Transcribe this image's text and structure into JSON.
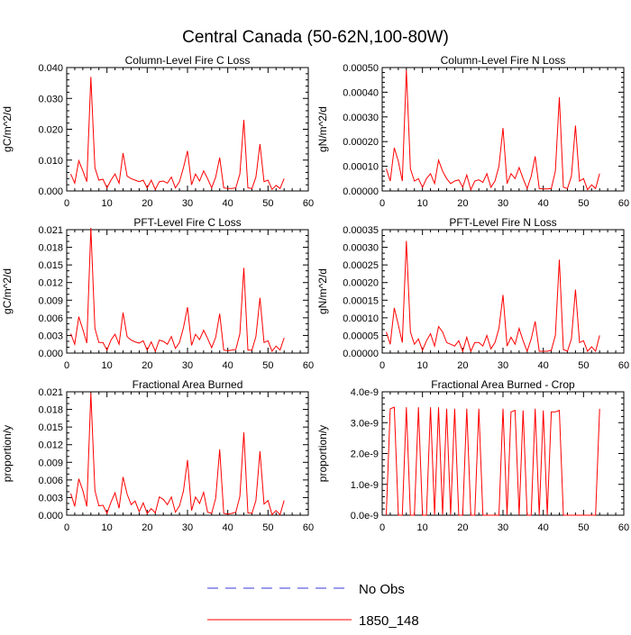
{
  "page_title": "Central Canada (50-62N,100-80W)",
  "colors": {
    "series": "#ff0000",
    "obs": "#3a3ad8",
    "axis": "#000000"
  },
  "legend": [
    {
      "label": "No Obs",
      "style": "dashed",
      "color": "#3a3ad8"
    },
    {
      "label": "1850_148",
      "style": "solid",
      "color": "#ff0000"
    }
  ],
  "chart_data": [
    {
      "type": "line",
      "title": "Column-Level Fire C Loss",
      "ylabel": "gC/m^2/d",
      "xlim": [
        0,
        60
      ],
      "ylim": [
        0,
        0.04
      ],
      "xticks": [
        0,
        10,
        20,
        30,
        40,
        50,
        60
      ],
      "xtick_labels": [
        "0",
        "10",
        "20",
        "30",
        "40",
        "50",
        "60"
      ],
      "yticks": [
        0,
        0.01,
        0.02,
        0.03,
        0.04
      ],
      "ytick_labels": [
        "0.000",
        "0.010",
        "0.020",
        "0.030",
        "0.040"
      ],
      "series": [
        {
          "name": "1850_148",
          "x": [
            1,
            2,
            3,
            4,
            5,
            6,
            7,
            8,
            9,
            10,
            11,
            12,
            13,
            14,
            15,
            16,
            17,
            18,
            19,
            20,
            21,
            22,
            23,
            24,
            25,
            26,
            27,
            28,
            29,
            30,
            31,
            32,
            33,
            34,
            35,
            36,
            37,
            38,
            39,
            40,
            41,
            42,
            43,
            44,
            45,
            46,
            47,
            48,
            49,
            50,
            51,
            52,
            53,
            54
          ],
          "values": [
            0.0055,
            0.0025,
            0.0098,
            0.0065,
            0.003,
            0.037,
            0.0075,
            0.0035,
            0.0038,
            0.001,
            0.0035,
            0.0055,
            0.0025,
            0.0123,
            0.0048,
            0.004,
            0.0035,
            0.003,
            0.0035,
            0.001,
            0.0035,
            0.0005,
            0.003,
            0.0032,
            0.0025,
            0.0045,
            0.001,
            0.003,
            0.0075,
            0.013,
            0.002,
            0.0055,
            0.0032,
            0.0065,
            0.004,
            0.001,
            0.0045,
            0.0108,
            0.001,
            0.0008,
            0.0008,
            0.001,
            0.0055,
            0.023,
            0.001,
            0.0008,
            0.0045,
            0.0152,
            0.003,
            0.0035,
            0.0005,
            0.0018,
            0.0008,
            0.004
          ]
        }
      ]
    },
    {
      "type": "line",
      "title": "Column-Level Fire N Loss",
      "ylabel": "gN/m^2/d",
      "xlim": [
        0,
        60
      ],
      "ylim": [
        0,
        0.0005
      ],
      "xticks": [
        0,
        10,
        20,
        30,
        40,
        50,
        60
      ],
      "xtick_labels": [
        "0",
        "10",
        "20",
        "30",
        "40",
        "50",
        "60"
      ],
      "yticks": [
        0,
        0.0001,
        0.0002,
        0.0003,
        0.0004,
        0.0005
      ],
      "ytick_labels": [
        "0.00000",
        "0.00010",
        "0.00020",
        "0.00030",
        "0.00040",
        "0.00050"
      ],
      "series": [
        {
          "name": "1850_148",
          "x": [
            1,
            2,
            3,
            4,
            5,
            6,
            7,
            8,
            9,
            10,
            11,
            12,
            13,
            14,
            15,
            16,
            17,
            18,
            19,
            20,
            21,
            22,
            23,
            24,
            25,
            26,
            27,
            28,
            29,
            30,
            31,
            32,
            33,
            34,
            35,
            36,
            37,
            38,
            39,
            40,
            41,
            42,
            43,
            44,
            45,
            46,
            47,
            48,
            49,
            50,
            51,
            52,
            53,
            54
          ],
          "values": [
            9e-05,
            4e-05,
            0.000175,
            0.00012,
            4e-05,
            0.00049,
            9e-05,
            4e-05,
            5e-05,
            1.5e-05,
            5e-05,
            7e-05,
            3e-05,
            0.000125,
            8e-05,
            5e-05,
            3e-05,
            4e-05,
            4.5e-05,
            1.5e-05,
            6.5e-05,
            5e-06,
            4e-05,
            4.5e-05,
            3.5e-05,
            7e-05,
            1.5e-05,
            4e-05,
            0.0001,
            0.000255,
            3e-05,
            7e-05,
            5e-05,
            9.5e-05,
            5e-05,
            1e-05,
            6e-05,
            0.00014,
            1e-05,
            8e-06,
            8e-06,
            1e-05,
            8e-05,
            0.00038,
            1.5e-05,
            1e-05,
            6e-05,
            0.000265,
            4e-05,
            5e-05,
            5e-06,
            2.5e-05,
            1e-05,
            7e-05
          ]
        }
      ]
    },
    {
      "type": "line",
      "title": "PFT-Level Fire C Loss",
      "ylabel": "gC/m^2/d",
      "xlim": [
        0,
        60
      ],
      "ylim": [
        0,
        0.021
      ],
      "xticks": [
        0,
        10,
        20,
        30,
        40,
        50,
        60
      ],
      "xtick_labels": [
        "0",
        "10",
        "20",
        "30",
        "40",
        "50",
        "60"
      ],
      "yticks": [
        0,
        0.003,
        0.006,
        0.009,
        0.012,
        0.015,
        0.018,
        0.021
      ],
      "ytick_labels": [
        "0.000",
        "0.003",
        "0.006",
        "0.009",
        "0.012",
        "0.015",
        "0.018",
        "0.021"
      ],
      "series": [
        {
          "name": "1850_148",
          "x": [
            1,
            2,
            3,
            4,
            5,
            6,
            7,
            8,
            9,
            10,
            11,
            12,
            13,
            14,
            15,
            16,
            17,
            18,
            19,
            20,
            21,
            22,
            23,
            24,
            25,
            26,
            27,
            28,
            29,
            30,
            31,
            32,
            33,
            34,
            35,
            36,
            37,
            38,
            39,
            40,
            41,
            42,
            43,
            44,
            45,
            46,
            47,
            48,
            49,
            50,
            51,
            52,
            53,
            54
          ],
          "values": [
            0.0033,
            0.0015,
            0.0062,
            0.004,
            0.0017,
            0.0213,
            0.0042,
            0.0018,
            0.0018,
            0.0005,
            0.0022,
            0.0032,
            0.0015,
            0.0069,
            0.0028,
            0.0022,
            0.0019,
            0.0017,
            0.0021,
            0.0005,
            0.0019,
            0.0003,
            0.0022,
            0.002,
            0.0015,
            0.0028,
            0.0008,
            0.0018,
            0.0043,
            0.0078,
            0.0013,
            0.0032,
            0.0023,
            0.0039,
            0.0025,
            0.0009,
            0.0027,
            0.0067,
            0.0005,
            0.0004,
            0.0005,
            0.0006,
            0.0033,
            0.0145,
            0.0005,
            0.0005,
            0.0028,
            0.0094,
            0.0018,
            0.0021,
            0.0003,
            0.0012,
            0.0005,
            0.0026
          ]
        }
      ]
    },
    {
      "type": "line",
      "title": "PFT-Level Fire N Loss",
      "ylabel": "gN/m^2/d",
      "xlim": [
        0,
        60
      ],
      "ylim": [
        0,
        0.00035
      ],
      "xticks": [
        0,
        10,
        20,
        30,
        40,
        50,
        60
      ],
      "xtick_labels": [
        "0",
        "10",
        "20",
        "30",
        "40",
        "50",
        "60"
      ],
      "yticks": [
        0,
        5e-05,
        0.0001,
        0.00015,
        0.0002,
        0.00025,
        0.0003,
        0.00035
      ],
      "ytick_labels": [
        "0.00000",
        "0.00005",
        "0.00010",
        "0.00015",
        "0.00020",
        "0.00025",
        "0.00030",
        "0.00035"
      ],
      "series": [
        {
          "name": "1850_148",
          "x": [
            1,
            2,
            3,
            4,
            5,
            6,
            7,
            8,
            9,
            10,
            11,
            12,
            13,
            14,
            15,
            16,
            17,
            18,
            19,
            20,
            21,
            22,
            23,
            24,
            25,
            26,
            27,
            28,
            29,
            30,
            31,
            32,
            33,
            34,
            35,
            36,
            37,
            38,
            39,
            40,
            41,
            42,
            43,
            44,
            45,
            46,
            47,
            48,
            49,
            50,
            51,
            52,
            53,
            54
          ],
          "values": [
            6e-05,
            2.5e-05,
            0.000128,
            8e-05,
            3e-05,
            0.000318,
            6e-05,
            2.5e-05,
            4e-05,
            8e-06,
            3.5e-05,
            5.5e-05,
            2e-05,
            7.5e-05,
            6e-05,
            3e-05,
            2.5e-05,
            2e-05,
            3.5e-05,
            5e-06,
            4.5e-05,
            5e-06,
            3e-05,
            3e-05,
            2e-05,
            5e-05,
            1.2e-05,
            3e-05,
            7e-05,
            0.000165,
            2e-05,
            4.5e-05,
            2.5e-05,
            7e-05,
            3.5e-05,
            5e-06,
            4e-05,
            9e-05,
            5e-06,
            5e-06,
            5e-06,
            8e-06,
            5e-05,
            0.000265,
            1e-05,
            5e-06,
            4e-05,
            0.00018,
            3e-05,
            3.5e-05,
            5e-06,
            1.8e-05,
            5e-06,
            5e-05
          ]
        }
      ]
    },
    {
      "type": "line",
      "title": "Fractional Area Burned",
      "ylabel": "proportion/y",
      "xlim": [
        0,
        60
      ],
      "ylim": [
        0,
        0.021
      ],
      "xticks": [
        0,
        10,
        20,
        30,
        40,
        50,
        60
      ],
      "xtick_labels": [
        "0",
        "10",
        "20",
        "30",
        "40",
        "50",
        "60"
      ],
      "yticks": [
        0,
        0.003,
        0.006,
        0.009,
        0.012,
        0.015,
        0.018,
        0.021
      ],
      "ytick_labels": [
        "0.000",
        "0.003",
        "0.006",
        "0.009",
        "0.012",
        "0.015",
        "0.018",
        "0.021"
      ],
      "series": [
        {
          "name": "1850_148",
          "x": [
            1,
            2,
            3,
            4,
            5,
            6,
            7,
            8,
            9,
            10,
            11,
            12,
            13,
            14,
            15,
            16,
            17,
            18,
            19,
            20,
            21,
            22,
            23,
            24,
            25,
            26,
            27,
            28,
            29,
            30,
            31,
            32,
            33,
            34,
            35,
            36,
            37,
            38,
            39,
            40,
            41,
            42,
            43,
            44,
            45,
            46,
            47,
            48,
            49,
            50,
            51,
            52,
            53,
            54
          ],
          "values": [
            0.0037,
            0.0015,
            0.0062,
            0.0042,
            0.0015,
            0.0208,
            0.0042,
            0.0016,
            0.0017,
            0.0003,
            0.0022,
            0.0038,
            0.0012,
            0.0065,
            0.0036,
            0.0018,
            0.0024,
            0.0006,
            0.0021,
            0.0003,
            0.0011,
            0.0004,
            0.0031,
            0.0027,
            0.0018,
            0.0031,
            0.0005,
            0.0016,
            0.0041,
            0.0094,
            0.0008,
            0.0031,
            0.002,
            0.0039,
            0.0005,
            0.0003,
            0.0029,
            0.0112,
            0.0003,
            0.0002,
            0.0003,
            0.0005,
            0.0032,
            0.0141,
            0.0004,
            0.0003,
            0.0025,
            0.0109,
            0.0019,
            0.0025,
            0.0001,
            0.0008,
            0.0001,
            0.0025
          ]
        }
      ]
    },
    {
      "type": "line",
      "title": "Fractional Area Burned - Crop",
      "ylabel": "proportion/y",
      "xlim": [
        0,
        60
      ],
      "ylim": [
        0,
        4e-09
      ],
      "xticks": [
        0,
        10,
        20,
        30,
        40,
        50,
        60
      ],
      "xtick_labels": [
        "0",
        "10",
        "20",
        "30",
        "40",
        "50",
        "60"
      ],
      "yticks": [
        0,
        1e-09,
        2e-09,
        3e-09,
        4e-09
      ],
      "ytick_labels": [
        "0.0e-9",
        "1.0e-9",
        "2.0e-9",
        "3.0e-9",
        "4.0e-9"
      ],
      "series": [
        {
          "name": "1850_148",
          "x": [
            1,
            2,
            3,
            4,
            5,
            6,
            7,
            8,
            9,
            10,
            11,
            12,
            13,
            14,
            15,
            16,
            17,
            18,
            19,
            20,
            21,
            22,
            23,
            24,
            25,
            26,
            27,
            28,
            29,
            30,
            31,
            32,
            33,
            34,
            35,
            36,
            37,
            38,
            39,
            40,
            41,
            42,
            43,
            44,
            45,
            46,
            47,
            48,
            49,
            50,
            51,
            52,
            53,
            54
          ],
          "values": [
            0,
            3.45e-09,
            3.5e-09,
            0,
            0,
            3.5e-09,
            0,
            0,
            3.5e-09,
            0,
            0,
            3.5e-09,
            0,
            3.5e-09,
            0,
            3.45e-09,
            0,
            3.45e-09,
            0,
            0,
            3.45e-09,
            0,
            0,
            3.45e-09,
            0,
            0,
            0,
            0,
            0,
            3.45e-09,
            0,
            3.35e-09,
            3.4e-09,
            0,
            3.4e-09,
            0,
            0,
            3.45e-09,
            0,
            3.4e-09,
            0,
            3.35e-09,
            3.35e-09,
            3.4e-09,
            0,
            0,
            0,
            0,
            0,
            0,
            0,
            0,
            0,
            3.45e-09
          ]
        }
      ]
    }
  ]
}
